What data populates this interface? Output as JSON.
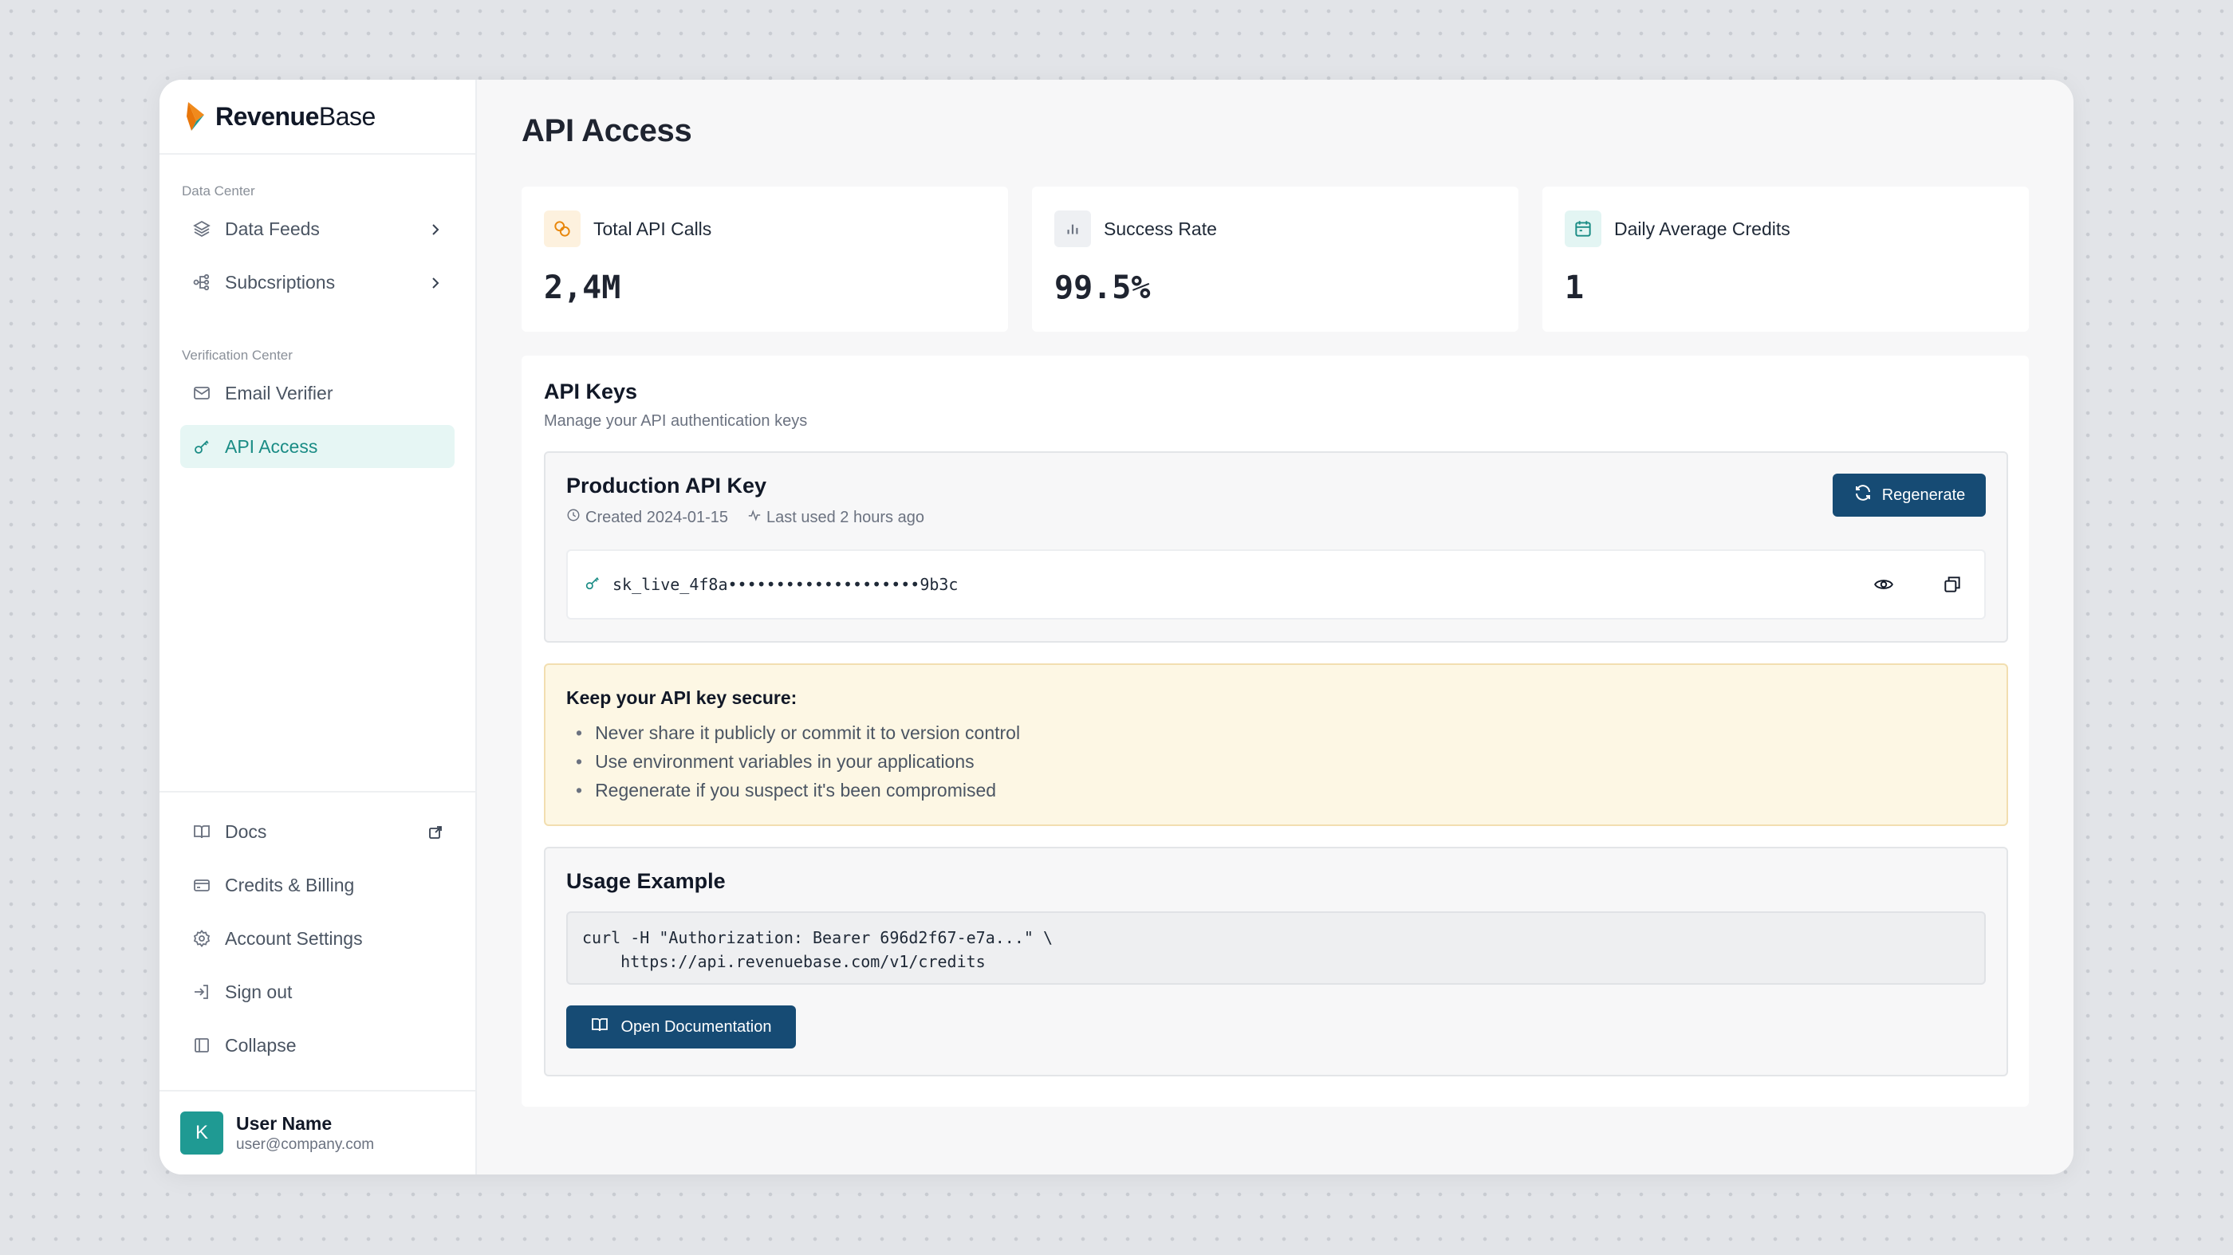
{
  "brand": {
    "name_bold": "Revenue",
    "name_light": "Base"
  },
  "sidebar": {
    "sections": [
      {
        "label": "Data Center"
      },
      {
        "label": "Verification Center"
      }
    ],
    "data_center_items": [
      {
        "label": "Data Feeds",
        "icon": "layers-icon"
      },
      {
        "label": "Subcsriptions",
        "icon": "share-nodes-icon"
      }
    ],
    "verification_items": [
      {
        "label": "Email Verifier",
        "icon": "mail-icon"
      },
      {
        "label": "API Access",
        "icon": "key-icon",
        "active": true
      }
    ],
    "bottom_items": [
      {
        "label": "Docs",
        "icon": "book-icon"
      },
      {
        "label": "Credits & Billing",
        "icon": "credit-card-icon"
      },
      {
        "label": "Account Settings",
        "icon": "gear-icon"
      },
      {
        "label": "Sign out",
        "icon": "sign-out-icon"
      },
      {
        "label": "Collapse",
        "icon": "sidebar-collapse-icon"
      }
    ],
    "user": {
      "initial": "K",
      "name": "User Name",
      "email": "user@company.com"
    }
  },
  "main": {
    "title": "API Access",
    "stats": [
      {
        "label": "Total API Calls",
        "value": "2,4M",
        "icon": "coins-icon",
        "icon_bg": "#fdf1de",
        "icon_color": "#e8860a"
      },
      {
        "label": "Success Rate",
        "value": "99.5%",
        "icon": "bar-chart-icon",
        "icon_bg": "#eef0f3",
        "icon_color": "#6b7280"
      },
      {
        "label": "Daily Average Credits",
        "value": "1",
        "icon": "calendar-icon",
        "icon_bg": "#e3f5f3",
        "icon_color": "#1a8c85"
      }
    ],
    "api_keys": {
      "title": "API Keys",
      "subtitle": "Manage your API authentication keys",
      "key": {
        "title": "Production API Key",
        "created": "Created 2024-01-15",
        "last_used": "Last used 2 hours ago",
        "regenerate_label": "Regenerate",
        "value": "sk_live_4f8a••••••••••••••••••••9b3c"
      },
      "warning": {
        "title": "Keep your API key secure:",
        "items": [
          "Never share it publicly or commit it to version control",
          "Use environment variables in your applications",
          "Regenerate if you suspect it's been compromised"
        ]
      },
      "usage": {
        "title": "Usage Example",
        "code": "curl -H \"Authorization: Bearer 696d2f67-e7a...\" \\\n    https://api.revenuebase.com/v1/credits",
        "button_label": "Open Documentation"
      }
    }
  },
  "colors": {
    "accent": "#1a8c85",
    "primary_button": "#164b74",
    "brand_orange": "#e8760a"
  }
}
